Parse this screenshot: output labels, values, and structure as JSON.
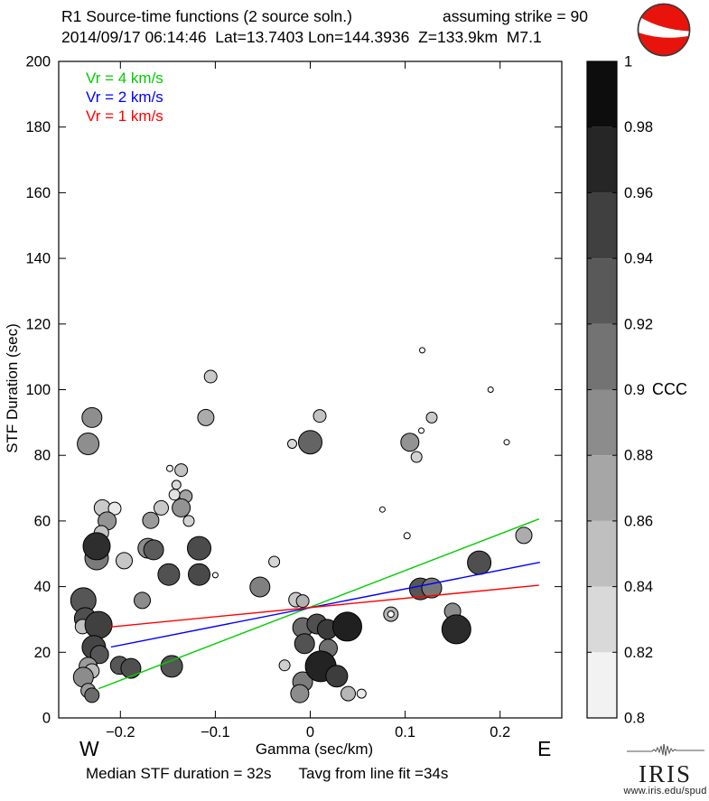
{
  "header": {
    "title_line1_left": "R1 Source-time functions (2 source soln.)",
    "title_line1_right": "assuming strike = 90",
    "title_line2": "2014/09/17 06:14:46  Lat=13.7403 Lon=144.3936  Z=133.9km  M7.1"
  },
  "legend": {
    "items": [
      {
        "label": "Vr = 4 km/s",
        "color": "#00cc00"
      },
      {
        "label": "Vr = 2 km/s",
        "color": "#0000ff"
      },
      {
        "label": "Vr = 1 km/s",
        "color": "#ff0000"
      }
    ]
  },
  "axes": {
    "xlabel": "Gamma (sec/km)",
    "ylabel": "STF Duration (sec)",
    "west_label": "W",
    "east_label": "E"
  },
  "footer": {
    "note_left": "Median STF duration = 32s",
    "note_right": "Tavg from line fit =34s"
  },
  "iris": {
    "name": "IRIS",
    "url": "www.iris.edu/spud"
  },
  "chart_data": {
    "type": "scatter",
    "title": "R1 Source-time functions (2 source soln.), assuming strike = 90",
    "xlabel": "Gamma (sec/km)",
    "ylabel": "STF Duration (sec)",
    "xlim": [
      -0.265,
      0.265
    ],
    "ylim": [
      0,
      200
    ],
    "grid": false,
    "xticks": [
      {
        "v": -0.2,
        "label": "−0.2"
      },
      {
        "v": -0.1,
        "label": "−0.1"
      },
      {
        "v": 0,
        "label": "0"
      },
      {
        "v": 0.1,
        "label": "0.1"
      },
      {
        "v": 0.2,
        "label": "0.2"
      }
    ],
    "yticks": [
      {
        "v": 0,
        "label": "0"
      },
      {
        "v": 20,
        "label": "20"
      },
      {
        "v": 40,
        "label": "40"
      },
      {
        "v": 60,
        "label": "60"
      },
      {
        "v": 80,
        "label": "80"
      },
      {
        "v": 100,
        "label": "100"
      },
      {
        "v": 120,
        "label": "120"
      },
      {
        "v": 140,
        "label": "140"
      },
      {
        "v": 160,
        "label": "160"
      },
      {
        "v": 180,
        "label": "180"
      },
      {
        "v": 200,
        "label": "200"
      }
    ],
    "colorbar": {
      "label": "CCC",
      "vmin": 0.8,
      "vmax": 1.0,
      "segments": 10,
      "ticks": [
        {
          "v": 1,
          "label": "1"
        },
        {
          "v": 0.98,
          "label": "0.98"
        },
        {
          "v": 0.96,
          "label": "0.96"
        },
        {
          "v": 0.94,
          "label": "0.94"
        },
        {
          "v": 0.92,
          "label": "0.92"
        },
        {
          "v": 0.9,
          "label": "0.9"
        },
        {
          "v": 0.88,
          "label": "0.88"
        },
        {
          "v": 0.86,
          "label": "0.86"
        },
        {
          "v": 0.84,
          "label": "0.84"
        },
        {
          "v": 0.82,
          "label": "0.82"
        },
        {
          "v": 0.8,
          "label": "0.8"
        }
      ]
    },
    "fit_lines": [
      {
        "name": "Vr = 4 km/s",
        "color": "#00cc00",
        "x1": -0.223,
        "y1": 8.9,
        "x2": 0.241,
        "y2": 60.6
      },
      {
        "name": "Vr = 2 km/s",
        "color": "#0000ff",
        "x1": -0.21,
        "y1": 21.6,
        "x2": 0.242,
        "y2": 47.4
      },
      {
        "name": "Vr = 1 km/s",
        "color": "#ff0000",
        "x1": -0.211,
        "y1": 27.7,
        "x2": 0.241,
        "y2": 40.4
      }
    ],
    "points": [
      {
        "x": -0.105,
        "y": 104,
        "r": 7,
        "c": "#c9c9c9"
      },
      {
        "x": -0.23,
        "y": 91.5,
        "r": 11,
        "c": "#8e8e8e"
      },
      {
        "x": -0.234,
        "y": 83.5,
        "r": 12,
        "c": "#8e8e8e"
      },
      {
        "x": -0.11,
        "y": 91.5,
        "r": 9,
        "c": "#ababab"
      },
      {
        "x": 0.01,
        "y": 92,
        "r": 7,
        "c": "#c2c2c2"
      },
      {
        "x": -0.019,
        "y": 83.5,
        "r": 5,
        "c": "#dadada"
      },
      {
        "x": 0.0,
        "y": 84,
        "r": 13,
        "c": "#646464"
      },
      {
        "x": 0.128,
        "y": 91.5,
        "r": 6,
        "c": "#c9c9c9"
      },
      {
        "x": 0.117,
        "y": 87.5,
        "r": 3,
        "c": "#ffffff"
      },
      {
        "x": 0.105,
        "y": 84,
        "r": 10,
        "c": "#939393"
      },
      {
        "x": 0.112,
        "y": 79.5,
        "r": 6,
        "c": "#d2d2d2"
      },
      {
        "x": 0.118,
        "y": 112,
        "r": 3,
        "c": "#ffffff"
      },
      {
        "x": 0.19,
        "y": 100,
        "r": 3,
        "c": "#ffffff"
      },
      {
        "x": 0.207,
        "y": 84,
        "r": 3,
        "c": "#ffffff"
      },
      {
        "x": 0.076,
        "y": 63.5,
        "r": 3,
        "c": "#ffffff"
      },
      {
        "x": 0.102,
        "y": 55.5,
        "r": 3.5,
        "c": "#ffffff"
      },
      {
        "x": -0.148,
        "y": 76,
        "r": 3.5,
        "c": "#f2f2f2"
      },
      {
        "x": -0.136,
        "y": 75.5,
        "r": 7,
        "c": "#c2c2c2"
      },
      {
        "x": -0.141,
        "y": 71,
        "r": 5,
        "c": "#dadada"
      },
      {
        "x": -0.143,
        "y": 68,
        "r": 6,
        "c": "#e2e2e2"
      },
      {
        "x": -0.131,
        "y": 67.5,
        "r": 7,
        "c": "#a3a3a3"
      },
      {
        "x": -0.219,
        "y": 64,
        "r": 9,
        "c": "#c9c9c9"
      },
      {
        "x": -0.206,
        "y": 63.8,
        "r": 7,
        "c": "#eaeaea"
      },
      {
        "x": -0.157,
        "y": 64,
        "r": 8,
        "c": "#c9c9c9"
      },
      {
        "x": -0.136,
        "y": 64,
        "r": 10,
        "c": "#939393"
      },
      {
        "x": -0.128,
        "y": 60,
        "r": 6,
        "c": "#d2d2d2"
      },
      {
        "x": -0.214,
        "y": 60,
        "r": 10,
        "c": "#939393"
      },
      {
        "x": -0.168,
        "y": 60.2,
        "r": 9,
        "c": "#9a9a9a"
      },
      {
        "x": -0.22,
        "y": 56.4,
        "r": 8,
        "c": "#c2c2c2"
      },
      {
        "x": -0.225,
        "y": 48.7,
        "r": 13,
        "c": "#7b7b7b"
      },
      {
        "x": -0.225,
        "y": 52.3,
        "r": 15,
        "c": "#2e2e2e"
      },
      {
        "x": -0.171,
        "y": 51.7,
        "r": 11,
        "c": "#8c8c8c"
      },
      {
        "x": -0.165,
        "y": 51.2,
        "r": 11,
        "c": "#5b5b5b"
      },
      {
        "x": -0.117,
        "y": 51.7,
        "r": 13,
        "c": "#4b4b4b"
      },
      {
        "x": -0.196,
        "y": 47.9,
        "r": 9,
        "c": "#c6c6c6"
      },
      {
        "x": -0.149,
        "y": 43.7,
        "r": 12,
        "c": "#515151"
      },
      {
        "x": -0.117,
        "y": 43.7,
        "r": 12,
        "c": "#494949"
      },
      {
        "x": -0.1,
        "y": 43.5,
        "r": 3,
        "c": "#ffffff"
      },
      {
        "x": -0.038,
        "y": 47.6,
        "r": 6,
        "c": "#d6d6d6"
      },
      {
        "x": -0.053,
        "y": 39.9,
        "r": 11,
        "c": "#808080"
      },
      {
        "x": -0.177,
        "y": 35.8,
        "r": 9,
        "c": "#8c8c8c"
      },
      {
        "x": -0.239,
        "y": 35.8,
        "r": 14,
        "c": "#565656"
      },
      {
        "x": -0.237,
        "y": 30.3,
        "r": 12,
        "c": "#4f4f4f"
      },
      {
        "x": -0.24,
        "y": 27.8,
        "r": 8,
        "c": "#c2c2c2"
      },
      {
        "x": -0.223,
        "y": 28.3,
        "r": 15,
        "c": "#404040"
      },
      {
        "x": -0.228,
        "y": 21.5,
        "r": 13,
        "c": "#454545"
      },
      {
        "x": -0.222,
        "y": 19.3,
        "r": 10,
        "c": "#565656"
      },
      {
        "x": -0.234,
        "y": 15.7,
        "r": 10,
        "c": "#9a9a9a"
      },
      {
        "x": -0.23,
        "y": 14.3,
        "r": 8,
        "c": "#bababa"
      },
      {
        "x": -0.239,
        "y": 12.4,
        "r": 11,
        "c": "#8c8c8c"
      },
      {
        "x": -0.234,
        "y": 8.3,
        "r": 8,
        "c": "#9c9c9c"
      },
      {
        "x": -0.23,
        "y": 6.9,
        "r": 8,
        "c": "#6b6b6b"
      },
      {
        "x": -0.201,
        "y": 16,
        "r": 10,
        "c": "#575757"
      },
      {
        "x": -0.189,
        "y": 15.1,
        "r": 11,
        "c": "#4f4f4f"
      },
      {
        "x": -0.146,
        "y": 15.7,
        "r": 12,
        "c": "#565656"
      },
      {
        "x": -0.015,
        "y": 36,
        "r": 8,
        "c": "#c9c9c9"
      },
      {
        "x": -0.008,
        "y": 35.6,
        "r": 7,
        "c": "#b1b1b1"
      },
      {
        "x": -0.008,
        "y": 27.5,
        "r": 11,
        "c": "#6b6b6b"
      },
      {
        "x": 0.007,
        "y": 28.6,
        "r": 11,
        "c": "#4f4f4f"
      },
      {
        "x": 0.018,
        "y": 27,
        "r": 11,
        "c": "#3b3b3b"
      },
      {
        "x": -0.006,
        "y": 22.6,
        "r": 11,
        "c": "#525252"
      },
      {
        "x": 0.019,
        "y": 21.2,
        "r": 10,
        "c": "#6f6f6f"
      },
      {
        "x": 0.039,
        "y": 27.8,
        "r": 16,
        "c": "#202020"
      },
      {
        "x": -0.027,
        "y": 16,
        "r": 6,
        "c": "#cecece"
      },
      {
        "x": -0.008,
        "y": 11,
        "r": 11,
        "c": "#7b7b7b"
      },
      {
        "x": -0.011,
        "y": 7.4,
        "r": 10,
        "c": "#8c8c8c"
      },
      {
        "x": 0.011,
        "y": 15.7,
        "r": 17,
        "c": "#232323"
      },
      {
        "x": 0.028,
        "y": 12.7,
        "r": 12,
        "c": "#3d3d3d"
      },
      {
        "x": 0.04,
        "y": 7.4,
        "r": 8,
        "c": "#b6b6b6"
      },
      {
        "x": 0.054,
        "y": 7.4,
        "r": 5,
        "c": "#eaeaea"
      },
      {
        "x": 0.116,
        "y": 39.3,
        "r": 12,
        "c": "#565656"
      },
      {
        "x": 0.128,
        "y": 39.6,
        "r": 11,
        "c": "#787878"
      },
      {
        "x": 0.178,
        "y": 47.3,
        "r": 13,
        "c": "#4f4f4f"
      },
      {
        "x": 0.225,
        "y": 55.6,
        "r": 9,
        "c": "#acacac"
      },
      {
        "x": 0.15,
        "y": 32.5,
        "r": 9,
        "c": "#8c8c8c"
      },
      {
        "x": 0.154,
        "y": 27,
        "r": 16,
        "c": "#2b2b2b"
      },
      {
        "x": 0.085,
        "y": 31.6,
        "r": 8,
        "c": "#b1b1b1"
      },
      {
        "x": 0.085,
        "y": 31.6,
        "r": 3.5,
        "c": "#ffffff"
      }
    ]
  }
}
